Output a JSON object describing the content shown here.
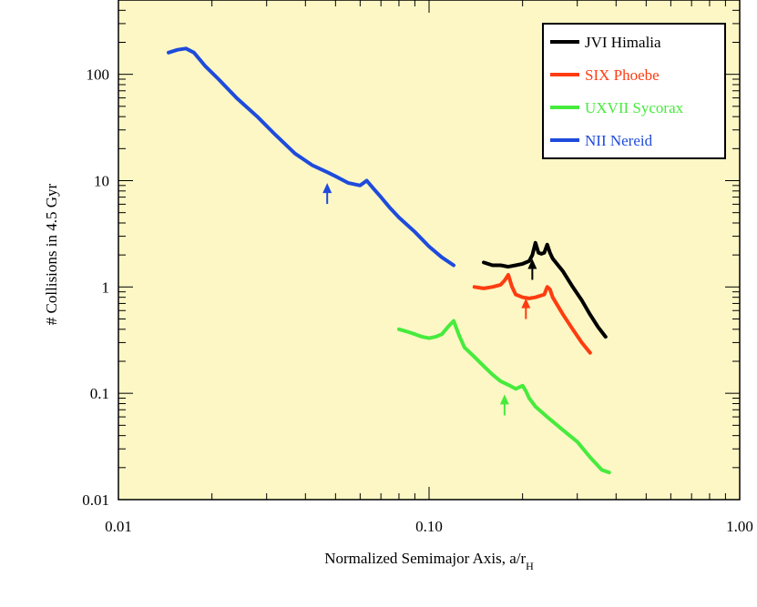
{
  "chart_data": {
    "type": "line",
    "xlabel": "Normalized Semimajor Axis, a/r",
    "xlabel_sub": "H",
    "ylabel": "# Collisions in 4.5 Gyr",
    "x_scale": "log",
    "y_scale": "log",
    "xlim": [
      0.01,
      1.0
    ],
    "ylim": [
      0.01,
      500
    ],
    "x_ticks": [
      {
        "value": 0.01,
        "label": "0.01"
      },
      {
        "value": 0.1,
        "label": "0.10"
      },
      {
        "value": 1.0,
        "label": "1.00"
      }
    ],
    "y_ticks": [
      {
        "value": 0.01,
        "label": "0.01"
      },
      {
        "value": 0.1,
        "label": "0.1"
      },
      {
        "value": 1,
        "label": "1"
      },
      {
        "value": 10,
        "label": "10"
      },
      {
        "value": 100,
        "label": "100"
      }
    ],
    "background_color": "#fcf7c5",
    "legend_position": "top-right",
    "series": [
      {
        "name": "JVI Himalia",
        "color": "#000000",
        "points": [
          [
            0.15,
            1.7
          ],
          [
            0.16,
            1.6
          ],
          [
            0.17,
            1.6
          ],
          [
            0.18,
            1.55
          ],
          [
            0.19,
            1.6
          ],
          [
            0.2,
            1.65
          ],
          [
            0.21,
            1.75
          ],
          [
            0.215,
            2.0
          ],
          [
            0.22,
            2.6
          ],
          [
            0.225,
            2.1
          ],
          [
            0.23,
            2.05
          ],
          [
            0.235,
            2.1
          ],
          [
            0.24,
            2.5
          ],
          [
            0.245,
            2.1
          ],
          [
            0.25,
            1.85
          ],
          [
            0.27,
            1.4
          ],
          [
            0.29,
            1.0
          ],
          [
            0.31,
            0.75
          ],
          [
            0.33,
            0.55
          ],
          [
            0.35,
            0.42
          ],
          [
            0.37,
            0.34
          ]
        ],
        "arrow": {
          "x": 0.215,
          "y": 1.45
        }
      },
      {
        "name": "SIX Phoebe",
        "color": "#ff3c10",
        "points": [
          [
            0.14,
            1.0
          ],
          [
            0.15,
            0.97
          ],
          [
            0.16,
            1.0
          ],
          [
            0.17,
            1.05
          ],
          [
            0.175,
            1.15
          ],
          [
            0.18,
            1.3
          ],
          [
            0.185,
            1.0
          ],
          [
            0.19,
            0.85
          ],
          [
            0.2,
            0.8
          ],
          [
            0.21,
            0.78
          ],
          [
            0.22,
            0.8
          ],
          [
            0.235,
            0.85
          ],
          [
            0.24,
            1.0
          ],
          [
            0.245,
            0.95
          ],
          [
            0.25,
            0.8
          ],
          [
            0.27,
            0.55
          ],
          [
            0.29,
            0.4
          ],
          [
            0.31,
            0.3
          ],
          [
            0.33,
            0.24
          ]
        ],
        "arrow": {
          "x": 0.205,
          "y": 0.62
        }
      },
      {
        "name": "UXVII Sycorax",
        "color": "#46eb3c",
        "points": [
          [
            0.08,
            0.4
          ],
          [
            0.085,
            0.38
          ],
          [
            0.09,
            0.36
          ],
          [
            0.095,
            0.34
          ],
          [
            0.1,
            0.33
          ],
          [
            0.105,
            0.34
          ],
          [
            0.11,
            0.36
          ],
          [
            0.115,
            0.42
          ],
          [
            0.12,
            0.48
          ],
          [
            0.125,
            0.35
          ],
          [
            0.13,
            0.27
          ],
          [
            0.14,
            0.22
          ],
          [
            0.15,
            0.18
          ],
          [
            0.16,
            0.15
          ],
          [
            0.17,
            0.13
          ],
          [
            0.18,
            0.12
          ],
          [
            0.19,
            0.11
          ],
          [
            0.2,
            0.118
          ],
          [
            0.205,
            0.105
          ],
          [
            0.21,
            0.09
          ],
          [
            0.22,
            0.075
          ],
          [
            0.24,
            0.06
          ],
          [
            0.27,
            0.045
          ],
          [
            0.3,
            0.035
          ],
          [
            0.33,
            0.025
          ],
          [
            0.36,
            0.019
          ],
          [
            0.38,
            0.018
          ]
        ],
        "arrow": {
          "x": 0.175,
          "y": 0.077
        }
      },
      {
        "name": "NII Nereid",
        "color": "#1e4bdc",
        "points": [
          [
            0.0145,
            160
          ],
          [
            0.0155,
            170
          ],
          [
            0.0165,
            175
          ],
          [
            0.0175,
            160
          ],
          [
            0.019,
            120
          ],
          [
            0.021,
            90
          ],
          [
            0.024,
            60
          ],
          [
            0.028,
            40
          ],
          [
            0.032,
            27
          ],
          [
            0.037,
            18
          ],
          [
            0.042,
            14
          ],
          [
            0.047,
            12
          ],
          [
            0.05,
            11
          ],
          [
            0.055,
            9.5
          ],
          [
            0.06,
            9.0
          ],
          [
            0.063,
            10
          ],
          [
            0.066,
            8.5
          ],
          [
            0.07,
            7.0
          ],
          [
            0.075,
            5.5
          ],
          [
            0.08,
            4.5
          ],
          [
            0.09,
            3.3
          ],
          [
            0.1,
            2.4
          ],
          [
            0.11,
            1.9
          ],
          [
            0.12,
            1.6
          ]
        ],
        "arrow": {
          "x": 0.047,
          "y": 7.5
        }
      }
    ]
  }
}
